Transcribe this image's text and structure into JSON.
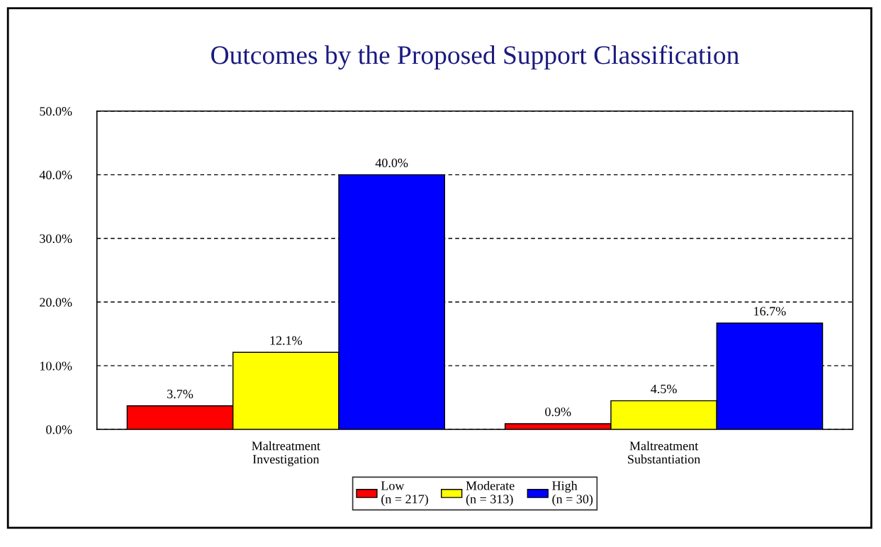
{
  "chart_data": {
    "type": "bar",
    "title": "Outcomes by the Proposed Support Classification",
    "categories": [
      "Maltreatment\nInvestigation",
      "Maltreatment\nSubstantiation"
    ],
    "series": [
      {
        "name": "Low\n(n = 217)",
        "color": "#ff0000",
        "values": [
          3.7,
          0.9
        ],
        "value_labels": [
          "3.7%",
          "0.9%"
        ]
      },
      {
        "name": "Moderate\n(n = 313)",
        "color": "#ffff00",
        "values": [
          12.1,
          4.5
        ],
        "value_labels": [
          "12.1%",
          "4.5%"
        ]
      },
      {
        "name": "High\n(n = 30)",
        "color": "#0000ff",
        "values": [
          40.0,
          16.7
        ],
        "value_labels": [
          "40.0%",
          "16.7%"
        ]
      }
    ],
    "ylim": [
      0,
      50
    ],
    "yticks": [
      {
        "value": 0,
        "label": "0.0%"
      },
      {
        "value": 10,
        "label": "10.0%"
      },
      {
        "value": 20,
        "label": "20.0%"
      },
      {
        "value": 30,
        "label": "30.0%"
      },
      {
        "value": 40,
        "label": "40.0%"
      },
      {
        "value": 50,
        "label": "50.0%"
      }
    ],
    "grid": "y",
    "legend": "bottom"
  }
}
